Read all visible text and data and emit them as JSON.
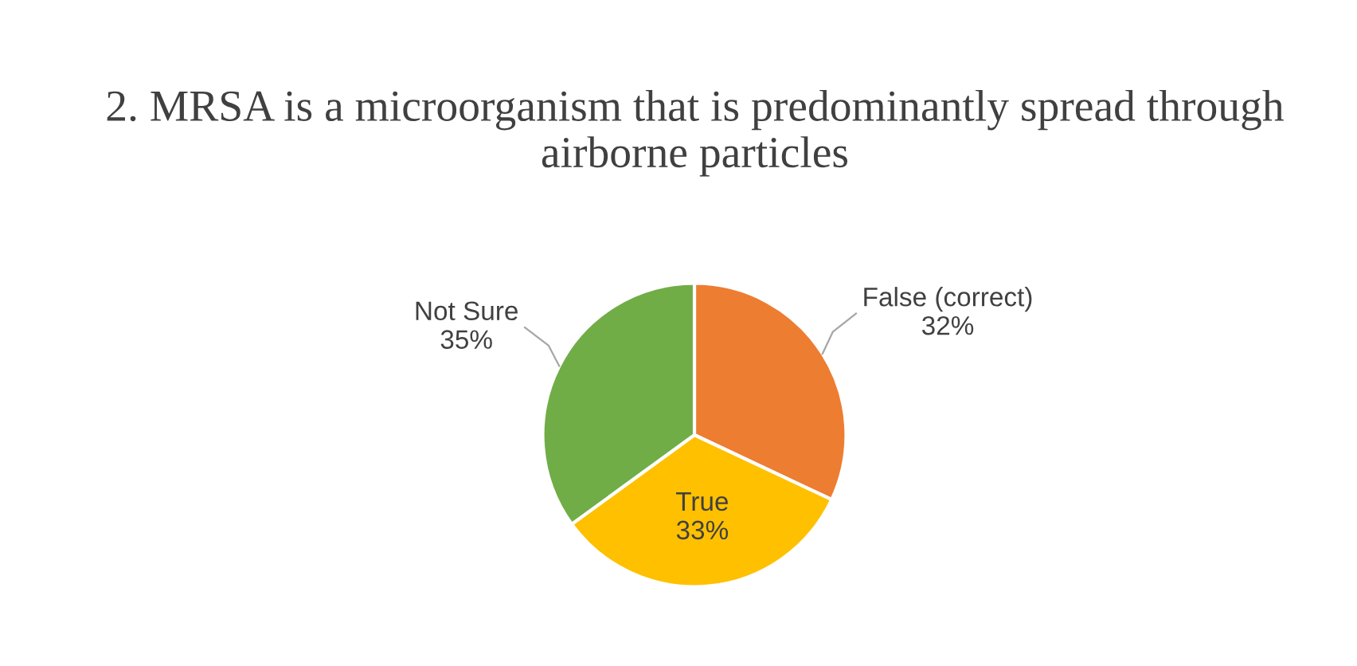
{
  "chart_data": {
    "type": "pie",
    "title": "2. MRSA is a microorganism that is predominantly spread through airborne particles",
    "categories": [
      "False (correct)",
      "True",
      "Not Sure"
    ],
    "values": [
      32,
      33,
      35
    ],
    "colors": [
      "#ed7d31",
      "#ffc000",
      "#70ad47"
    ],
    "value_labels": [
      "32%",
      "33%",
      "35%"
    ],
    "legend": false
  }
}
